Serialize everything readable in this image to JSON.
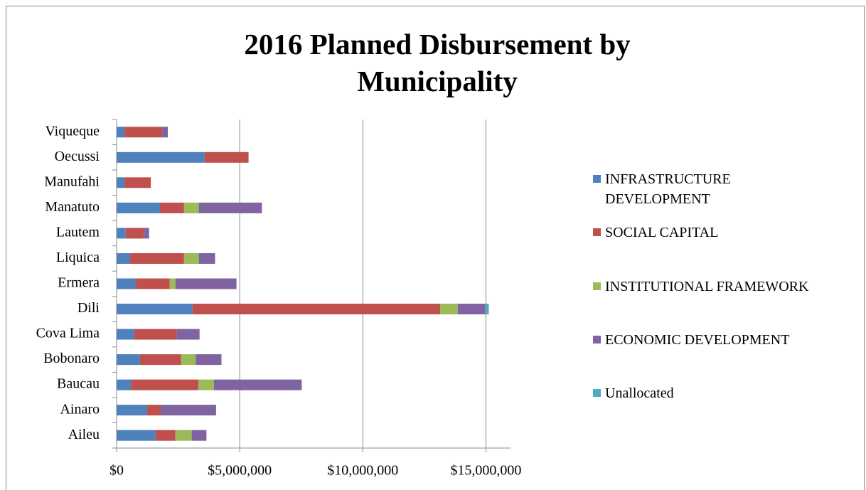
{
  "chart_data": {
    "type": "stacked_bar_horizontal",
    "title": "2016 Planned Disbursement by Municipality",
    "categories": [
      "Aileu",
      "Ainaro",
      "Baucau",
      "Bobonaro",
      "Cova Lima",
      "Dili",
      "Ermera",
      "Liquica",
      "Lautem",
      "Manatuto",
      "Manufahi",
      "Oecussi",
      "Viqueque"
    ],
    "series": [
      {
        "name": "INFRASTRUCTURE DEVELOPMENT",
        "color": "#4f81bd",
        "values": [
          1580000,
          1240000,
          580000,
          950000,
          720000,
          3080000,
          780000,
          550000,
          370000,
          1760000,
          320000,
          3570000,
          320000
        ]
      },
      {
        "name": "SOCIAL CAPITAL",
        "color": "#c0504d",
        "values": [
          810000,
          550000,
          2740000,
          1670000,
          1730000,
          10060000,
          1380000,
          2190000,
          750000,
          980000,
          1070000,
          1790000,
          1530000
        ]
      },
      {
        "name": "INSTITUTIONAL FRAMEWORK",
        "color": "#9bbb59",
        "values": [
          660000,
          0,
          630000,
          600000,
          0,
          720000,
          230000,
          600000,
          0,
          600000,
          0,
          0,
          0
        ]
      },
      {
        "name": "ECONOMIC DEVELOPMENT",
        "color": "#8064a2",
        "values": [
          600000,
          2250000,
          3570000,
          1040000,
          920000,
          1120000,
          2480000,
          660000,
          200000,
          2560000,
          0,
          0,
          230000
        ]
      },
      {
        "name": "Unallocated",
        "color": "#4bacc6",
        "values": [
          0,
          0,
          0,
          0,
          0,
          140000,
          0,
          0,
          0,
          0,
          0,
          0,
          0
        ]
      }
    ],
    "xlim": [
      0,
      16000000
    ],
    "xticks": [
      {
        "value": 0,
        "label": "$0"
      },
      {
        "value": 5000000,
        "label": "$5,000,000"
      },
      {
        "value": 10000000,
        "label": "$10,000,000"
      },
      {
        "value": 15000000,
        "label": "$15,000,000"
      }
    ],
    "grid": true,
    "legend": "right"
  }
}
